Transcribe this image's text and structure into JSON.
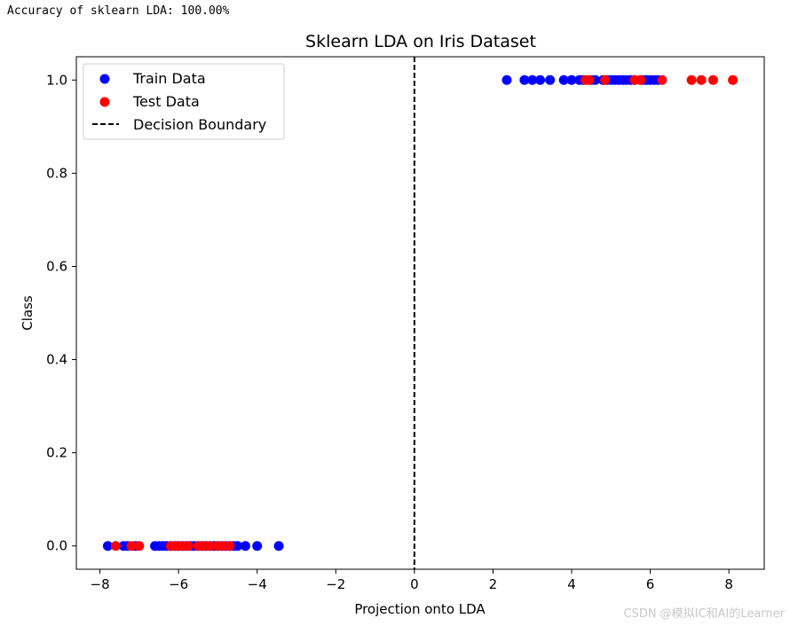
{
  "console_output": "Accuracy of sklearn LDA: 100.00%",
  "watermark": "CSDN @模拟IC和AI的Learner",
  "colors": {
    "train": "#0000ff",
    "test": "#ff0000",
    "boundary": "#000000"
  },
  "chart_data": {
    "type": "scatter",
    "title": "Sklearn LDA on Iris Dataset",
    "xlabel": "Projection onto LDA",
    "ylabel": "Class",
    "xlim": [
      -8.6,
      8.9
    ],
    "ylim": [
      -0.05,
      1.05
    ],
    "xticks": [
      -8,
      -6,
      -4,
      -2,
      0,
      2,
      4,
      6,
      8
    ],
    "xtick_labels": [
      "−8",
      "−6",
      "−4",
      "−2",
      "0",
      "2",
      "4",
      "6",
      "8"
    ],
    "yticks": [
      0.0,
      0.2,
      0.4,
      0.6,
      0.8,
      1.0
    ],
    "ytick_labels": [
      "0.0",
      "0.2",
      "0.4",
      "0.6",
      "0.8",
      "1.0"
    ],
    "grid": false,
    "legend_position": "upper-left",
    "series": [
      {
        "name": "Train Data",
        "marker": "circle",
        "color_key": "train",
        "x": [
          -7.8,
          -7.4,
          -7.3,
          -7.1,
          -6.6,
          -6.5,
          -6.4,
          -6.3,
          -6.2,
          -6.1,
          -6.0,
          -5.9,
          -5.8,
          -5.7,
          -5.6,
          -5.5,
          -5.4,
          -5.3,
          -5.2,
          -5.1,
          -5.0,
          -4.9,
          -4.8,
          -4.7,
          -4.6,
          -4.5,
          -4.3,
          -4.0,
          -3.45,
          2.35,
          2.8,
          3.0,
          3.2,
          3.45,
          3.8,
          4.0,
          4.2,
          4.3,
          4.5,
          4.6,
          4.8,
          4.9,
          5.0,
          5.1,
          5.2,
          5.3,
          5.4,
          5.5,
          5.6,
          5.8,
          5.9,
          6.0,
          6.1,
          6.2
        ],
        "y": [
          0,
          0,
          0,
          0,
          0,
          0,
          0,
          0,
          0,
          0,
          0,
          0,
          0,
          0,
          0,
          0,
          0,
          0,
          0,
          0,
          0,
          0,
          0,
          0,
          0,
          0,
          0,
          0,
          0,
          1,
          1,
          1,
          1,
          1,
          1,
          1,
          1,
          1,
          1,
          1,
          1,
          1,
          1,
          1,
          1,
          1,
          1,
          1,
          1,
          1,
          1,
          1,
          1,
          1
        ]
      },
      {
        "name": "Test Data",
        "marker": "circle",
        "color_key": "test",
        "x": [
          -7.6,
          -7.2,
          -7.0,
          -6.2,
          -6.05,
          -5.9,
          -5.75,
          -5.5,
          -5.35,
          -5.2,
          -5.0,
          -4.85,
          -4.7,
          4.35,
          4.45,
          4.85,
          5.6,
          5.75,
          6.3,
          7.05,
          7.3,
          7.6,
          8.1
        ],
        "y": [
          0,
          0,
          0,
          0,
          0,
          0,
          0,
          0,
          0,
          0,
          0,
          0,
          0,
          1,
          1,
          1,
          1,
          1,
          1,
          1,
          1,
          1,
          1
        ]
      }
    ],
    "reference_lines": [
      {
        "name": "Decision Boundary",
        "orientation": "vertical",
        "x": 0,
        "style": "dashed",
        "color_key": "boundary"
      }
    ]
  }
}
